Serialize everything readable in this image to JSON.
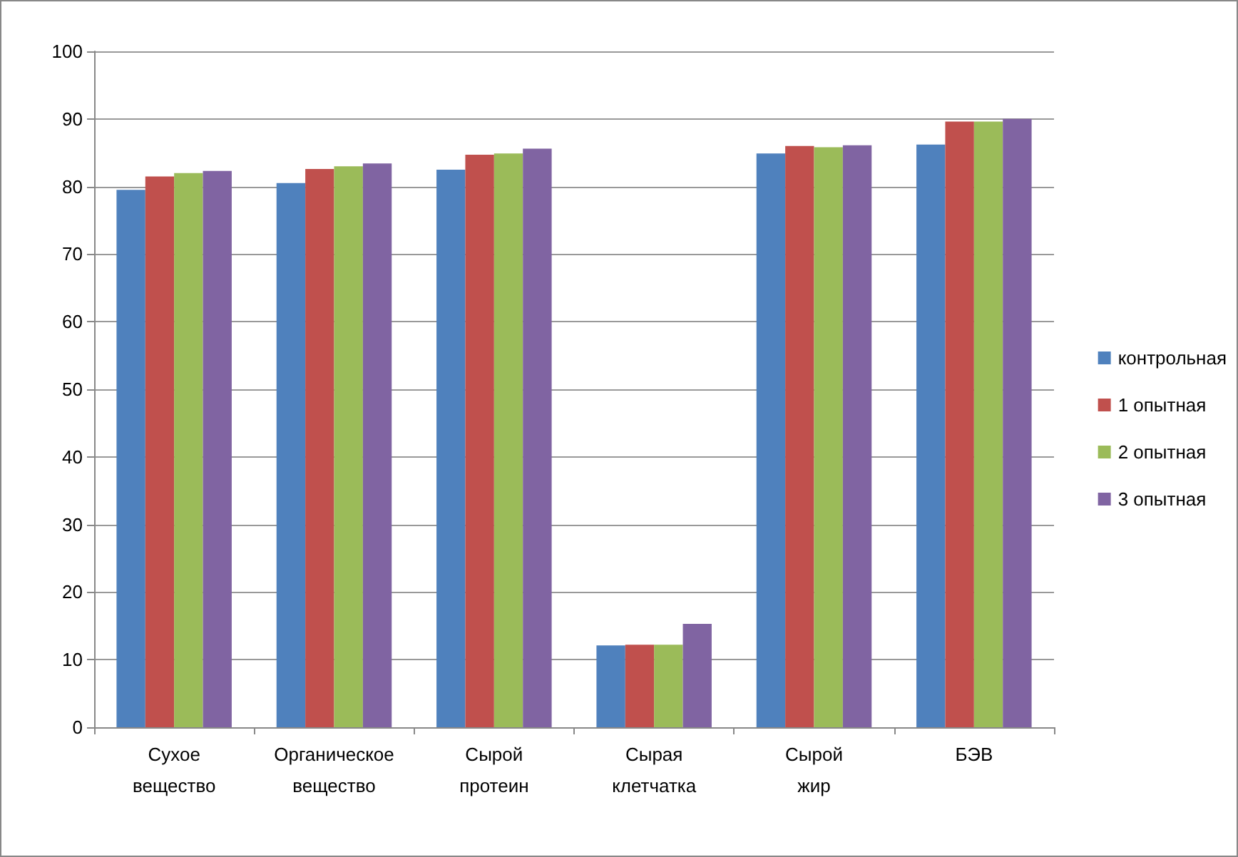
{
  "chart_data": {
    "type": "bar",
    "categories": [
      "Сухое вещество",
      "Органическое вещество",
      "Сырой протеин",
      "Сырая клетчатка",
      "Сырой жир",
      "БЭВ"
    ],
    "series": [
      {
        "name": "контрольная",
        "color": "#4f81bd",
        "values": [
          79.5,
          80.5,
          82.5,
          12.1,
          84.9,
          86.2
        ]
      },
      {
        "name": "1 опытная",
        "color": "#c0504d",
        "values": [
          81.5,
          82.6,
          84.7,
          12.2,
          86.0,
          89.6
        ]
      },
      {
        "name": "2 опытная",
        "color": "#9bbb59",
        "values": [
          82.0,
          83.0,
          84.9,
          12.2,
          85.8,
          89.6
        ]
      },
      {
        "name": "3 опытная",
        "color": "#8064a2",
        "values": [
          82.3,
          83.4,
          85.6,
          15.3,
          86.1,
          90.0
        ]
      }
    ],
    "ylim": [
      0,
      100
    ],
    "yticks": [
      0,
      10,
      20,
      30,
      40,
      50,
      60,
      70,
      80,
      90,
      100
    ],
    "grid": "y",
    "legend": "right"
  }
}
